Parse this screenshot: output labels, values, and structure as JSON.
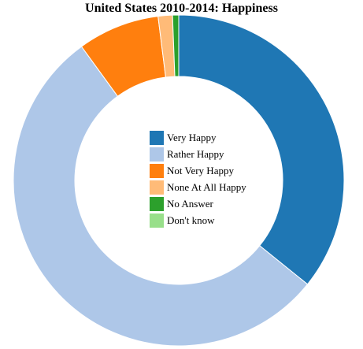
{
  "chart_data": {
    "type": "pie",
    "donut": true,
    "title": "United States 2010-2014: Happiness",
    "categories": [
      "Very Happy",
      "Rather Happy",
      "Not Very Happy",
      "None At All Happy",
      "No Answer",
      "Don't know"
    ],
    "values": [
      35.8,
      54.2,
      8.0,
      1.4,
      0.6,
      0.0
    ],
    "colors": [
      "#1f77b4",
      "#aec7e8",
      "#ff7f0e",
      "#ffbb78",
      "#2ca02c",
      "#98df8a"
    ],
    "legend_position": "center"
  }
}
